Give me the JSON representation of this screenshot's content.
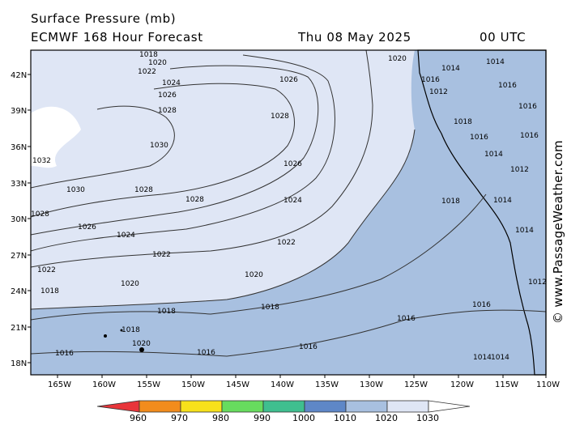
{
  "header": {
    "title": "Surface Pressure (mb)",
    "model": "ECMWF 168 Hour Forecast",
    "date": "Thu 08 May 2025",
    "time": "00 UTC"
  },
  "credit": "© www.PassageWeather.com",
  "map": {
    "lat_labels": [
      "42N",
      "39N",
      "36N",
      "33N",
      "30N",
      "27N",
      "24N",
      "21N",
      "18N"
    ],
    "lon_labels": [
      "165W",
      "160W",
      "155W",
      "150W",
      "145W",
      "140W",
      "135W",
      "130W",
      "125W",
      "120W",
      "115W",
      "110W"
    ],
    "isobar_labels": [
      "1018",
      "1020",
      "1022",
      "1024",
      "1026",
      "1028",
      "1030",
      "1032",
      "1016",
      "1014",
      "1012"
    ],
    "fill_colors": {
      "p1030": "#ffffff",
      "p1020_1030": "#dfe6f5",
      "p1010_1020": "#a8c0e0",
      "land": "#a8c0e0",
      "coast": "#000000"
    }
  },
  "legend": {
    "labels": [
      "960",
      "970",
      "980",
      "990",
      "1000",
      "1010",
      "1020",
      "1030"
    ],
    "colors": [
      "#e8353a",
      "#f28c1c",
      "#f7e11b",
      "#67dc5e",
      "#3fbf8f",
      "#5e87c7",
      "#a8c0e0",
      "#dfe6f5",
      "#ffffff"
    ]
  }
}
